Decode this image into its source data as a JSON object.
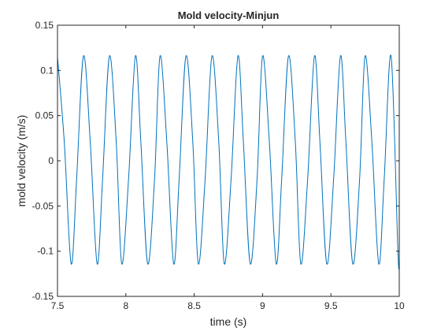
{
  "chart_data": {
    "type": "line",
    "title": "Mold velocity-Minjun",
    "xlabel": "time (s)",
    "ylabel": "mold velocity (m/s)",
    "xlim": [
      7.5,
      10
    ],
    "ylim": [
      -0.15,
      0.15
    ],
    "xticks": [
      7.5,
      8,
      8.5,
      9,
      9.5,
      10
    ],
    "xtick_labels": [
      "7.5",
      "8",
      "8.5",
      "9",
      "9.5",
      "10"
    ],
    "yticks": [
      0.15,
      0.1,
      0.05,
      0,
      -0.05,
      -0.1,
      -0.15
    ],
    "ytick_labels": [
      "0.15",
      "0.1",
      "0.05",
      "0",
      "-0.05",
      "-0.1",
      "-0.15"
    ],
    "grid": false,
    "line_color": "#0072BD",
    "series": [
      {
        "x": [
          7.5,
          7.55,
          7.6,
          7.64,
          7.69,
          7.74,
          7.79,
          7.83,
          7.88,
          7.93,
          7.97,
          8.02,
          8.07,
          8.11,
          8.16,
          8.21,
          8.25,
          8.3,
          8.35,
          8.39,
          8.44,
          8.49,
          8.53,
          8.58,
          8.63,
          8.68,
          8.72,
          8.77,
          8.82,
          8.86,
          8.91,
          8.96,
          9.0,
          9.05,
          9.1,
          9.14,
          9.19,
          9.24,
          9.28,
          9.33,
          9.38,
          9.42,
          9.47,
          9.52,
          9.57,
          9.61,
          9.66,
          9.71,
          9.75,
          9.8,
          9.85,
          9.89,
          9.94,
          9.99,
          10.0
        ],
        "y": [
          0.115,
          0.02,
          -0.114,
          -0.02,
          0.116,
          0.02,
          -0.114,
          -0.02,
          0.116,
          0.02,
          -0.114,
          -0.02,
          0.116,
          0.02,
          -0.114,
          -0.02,
          0.116,
          0.02,
          -0.114,
          -0.02,
          0.116,
          0.02,
          -0.114,
          -0.02,
          0.116,
          0.02,
          -0.114,
          -0.02,
          0.116,
          0.02,
          -0.114,
          -0.02,
          0.116,
          0.02,
          -0.114,
          -0.02,
          0.116,
          0.02,
          -0.114,
          -0.02,
          0.116,
          0.02,
          -0.114,
          -0.02,
          0.116,
          0.02,
          -0.114,
          -0.02,
          0.116,
          0.02,
          -0.114,
          -0.02,
          0.116,
          -0.1,
          -0.112
        ]
      }
    ]
  }
}
